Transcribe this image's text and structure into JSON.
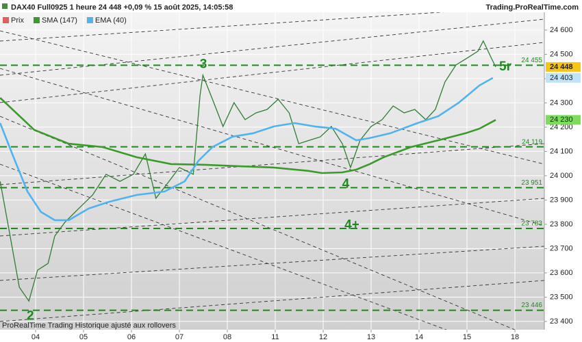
{
  "chart_data": {
    "type": "line",
    "title": "DAX40 Full0925 1 heure 24 448 +0,09 % 15 août 2025, 14:05:58",
    "source": "Trading.ProRealTime.com",
    "footer": "ProRealTime Trading  Historique ajusté aux rollovers",
    "xlim": [
      -0.743,
      10.614
    ],
    "xticks": [
      {
        "value": 0,
        "label": "04"
      },
      {
        "value": 1,
        "label": "05"
      },
      {
        "value": 2,
        "label": "06"
      },
      {
        "value": 3,
        "label": "07"
      },
      {
        "value": 4,
        "label": "08"
      },
      {
        "value": 5,
        "label": "11"
      },
      {
        "value": 6,
        "label": "12"
      },
      {
        "value": 7,
        "label": "13"
      },
      {
        "value": 8,
        "label": "14"
      },
      {
        "value": 9,
        "label": "15"
      },
      {
        "value": 10,
        "label": "18"
      }
    ],
    "ylim": [
      23366,
      24673
    ],
    "yticks": [
      {
        "value": 23400,
        "label": "23 400"
      },
      {
        "value": 23500,
        "label": "23 500"
      },
      {
        "value": 23600,
        "label": "23 600"
      },
      {
        "value": 23700,
        "label": "23 700"
      },
      {
        "value": 23800,
        "label": "23 800"
      },
      {
        "value": 23900,
        "label": "23 900"
      },
      {
        "value": 24000,
        "label": "24 000"
      },
      {
        "value": 24100,
        "label": "24 100"
      },
      {
        "value": 24200,
        "label": "24 200"
      },
      {
        "value": 24300,
        "label": "24 300"
      },
      {
        "value": 24400,
        "label": "24 400"
      },
      {
        "value": 24500,
        "label": "24 500"
      },
      {
        "value": 24600,
        "label": "24 600"
      }
    ],
    "grid": true,
    "series": [
      {
        "name": "Prix",
        "color": "#2e7d32",
        "legend_color": "#e06060",
        "badge_color": "#f5c518",
        "x": [
          -0.74,
          -0.57,
          -0.34,
          -0.14,
          0.04,
          0.26,
          0.4,
          0.61,
          0.9,
          1.19,
          1.47,
          1.76,
          2.04,
          2.29,
          2.51,
          2.73,
          3.0,
          3.29,
          3.43,
          3.49,
          3.69,
          3.91,
          4.14,
          4.37,
          4.6,
          4.83,
          5.06,
          5.29,
          5.49,
          5.71,
          5.94,
          6.17,
          6.4,
          6.57,
          6.77,
          7.0,
          7.23,
          7.46,
          7.69,
          7.91,
          8.14,
          8.34,
          8.54,
          8.77,
          9.0,
          9.23,
          9.34,
          9.51,
          9.6
        ],
        "values": [
          23977,
          23794,
          23541,
          23484,
          23611,
          23639,
          23752,
          23808,
          23865,
          23921,
          24006,
          23977,
          24006,
          24090,
          23907,
          23963,
          24034,
          24006,
          24330,
          24414,
          24315,
          24203,
          24301,
          24231,
          24259,
          24273,
          24315,
          24259,
          24132,
          24146,
          24160,
          24203,
          24132,
          24034,
          24146,
          24203,
          24231,
          24287,
          24259,
          24273,
          24231,
          24273,
          24386,
          24456,
          24484,
          24513,
          24555,
          24484,
          24448
        ],
        "last_label": "24 448"
      },
      {
        "name": "SMA (147)",
        "color": "#3a9a2a",
        "badge_color": "#7ddc5a",
        "x": [
          -0.74,
          -0.03,
          0.69,
          1.4,
          2.11,
          2.83,
          3.54,
          4.26,
          4.97,
          5.69,
          5.97,
          6.4,
          6.69,
          6.97,
          7.26,
          7.83,
          8.4,
          8.97,
          9.26,
          9.6
        ],
        "values": [
          24321,
          24189,
          24132,
          24118,
          24076,
          24048,
          24045,
          24039,
          24034,
          24020,
          24011,
          24014,
          24025,
          24048,
          24076,
          24118,
          24146,
          24175,
          24194,
          24230
        ],
        "last_label": "24 230"
      },
      {
        "name": "EMA (40)",
        "color": "#4fb3f0",
        "badge_color": "#bfe3fa",
        "x": [
          -0.74,
          -0.46,
          -0.17,
          0.11,
          0.4,
          0.69,
          1.11,
          1.54,
          2.11,
          2.69,
          3.11,
          3.4,
          3.69,
          4.11,
          4.54,
          4.97,
          5.4,
          5.83,
          6.26,
          6.69,
          6.97,
          7.4,
          7.97,
          8.4,
          8.83,
          9.26,
          9.54
        ],
        "values": [
          24217,
          24076,
          23935,
          23851,
          23817,
          23817,
          23865,
          23893,
          23921,
          23935,
          23977,
          24062,
          24118,
          24161,
          24175,
          24203,
          24217,
          24203,
          24194,
          24146,
          24155,
          24175,
          24217,
          24245,
          24301,
          24372,
          24403
        ],
        "last_label": "24 403"
      }
    ],
    "levels": [
      {
        "value": 24455,
        "label": "24 455"
      },
      {
        "value": 24119,
        "label": "24 119"
      },
      {
        "value": 23951,
        "label": "23 951"
      },
      {
        "value": 23783,
        "label": "23 783"
      },
      {
        "value": 23446,
        "label": "23 446"
      }
    ],
    "annotations": [
      {
        "text": "2",
        "x": -0.11,
        "y": 23421
      },
      {
        "text": "3",
        "x": 3.5,
        "y": 24458
      },
      {
        "text": "4",
        "x": 6.47,
        "y": 23964
      },
      {
        "text": "4+",
        "x": 6.6,
        "y": 23795
      },
      {
        "text": "5r",
        "x": 9.8,
        "y": 24448
      }
    ]
  }
}
